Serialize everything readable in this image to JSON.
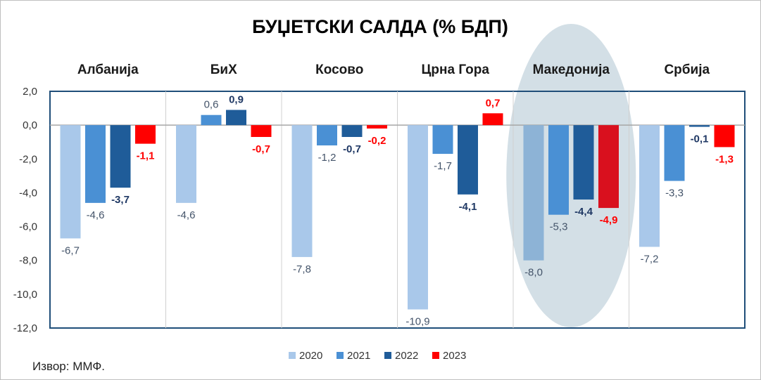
{
  "chart_data": {
    "type": "bar",
    "title": "БУЏЕТСКИ САЛДА (% БДП)",
    "categories": [
      "Албанија",
      "БиХ",
      "Косово",
      "Црна Гора",
      "Македонија",
      "Србија"
    ],
    "highlighted_category": "Македонија",
    "series": [
      {
        "name": "2020",
        "color": "#a9c8ea",
        "label_color": "#44546a",
        "label_bold": false,
        "values": [
          -6.7,
          -4.6,
          -7.8,
          -10.9,
          -8.0,
          -7.2
        ],
        "labels": [
          "-6,7",
          "-4,6",
          "-7,8",
          "-10,9",
          "-8,0",
          "-7,2"
        ]
      },
      {
        "name": "2021",
        "color": "#4a90d4",
        "label_color": "#44546a",
        "label_bold": false,
        "values": [
          -4.6,
          0.6,
          -1.2,
          -1.7,
          -5.3,
          -3.3
        ],
        "labels": [
          "-4,6",
          "0,6",
          "-1,2",
          "-1,7",
          "-5,3",
          "-3,3"
        ]
      },
      {
        "name": "2022",
        "color": "#1f5c99",
        "label_color": "#1f3864",
        "label_bold": true,
        "values": [
          -3.7,
          0.9,
          -0.7,
          -4.1,
          -4.4,
          -0.1
        ],
        "labels": [
          "-3,7",
          "0,9",
          "-0,7",
          "-4,1",
          "-4,4",
          "-0,1"
        ]
      },
      {
        "name": "2023",
        "color": "#ff0000",
        "label_color": "#ff0000",
        "label_bold": true,
        "values": [
          -1.1,
          -0.7,
          -0.2,
          0.7,
          -4.9,
          -1.3
        ],
        "labels": [
          "-1,1",
          "-0,7",
          "-0,2",
          "0,7",
          "-4,9",
          "-1,3"
        ]
      }
    ],
    "ylim": [
      -12,
      2
    ],
    "yticks": [
      2,
      0,
      -2,
      -4,
      -6,
      -8,
      -10,
      -12
    ],
    "ytick_labels": [
      "2,0",
      "0,0",
      "-2,0",
      "-4,0",
      "-6,0",
      "-8,0",
      "-10,0",
      "-12,0"
    ],
    "legend": {
      "placement": "bottom-center",
      "entries": [
        "2020",
        "2021",
        "2022",
        "2023"
      ]
    },
    "xlabel": "",
    "ylabel": ""
  },
  "source_note": "Извор: ММФ."
}
